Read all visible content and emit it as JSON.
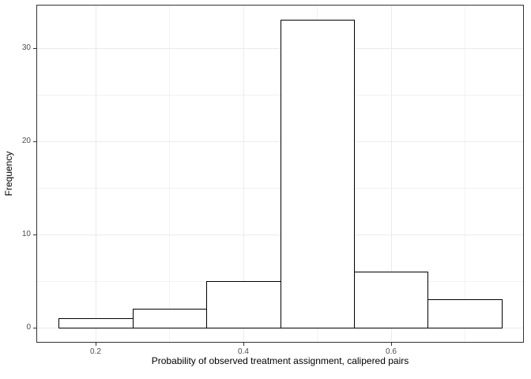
{
  "figure": {
    "background": "#ffffff"
  },
  "chart_data": {
    "type": "bar",
    "subtype": "histogram",
    "title": "",
    "xlabel": "Probability of observed treatment assignment, calipered pairs",
    "ylabel": "Frequency",
    "bin_edges": [
      0.15,
      0.25,
      0.35,
      0.45,
      0.55,
      0.65,
      0.75
    ],
    "counts": [
      1,
      2,
      5,
      33,
      6,
      3
    ],
    "x_ticks": [
      0.2,
      0.4,
      0.6
    ],
    "x_tick_labels": [
      "0.2",
      "0.4",
      "0.6"
    ],
    "y_ticks": [
      0,
      10,
      20,
      30
    ],
    "y_tick_labels": [
      "0",
      "10",
      "20",
      "30"
    ],
    "x_minor_gridlines": [
      0.3,
      0.5,
      0.7
    ],
    "y_minor_gridlines": [
      5,
      15,
      25
    ],
    "xlim": [
      0.12,
      0.78
    ],
    "ylim": [
      -1.65,
      34.65
    ],
    "grid": true,
    "legend": "none",
    "style": {
      "bar_fill": "#ffffff",
      "bar_stroke": "#000000",
      "panel_border": "#333333",
      "grid_major_color": "#ebebeb",
      "grid_minor_color": "#f2f2f2",
      "tick_color": "#333333",
      "tick_label_color": "#4d4d4d",
      "axis_title_color": "#000000",
      "panel_background": "#ffffff"
    }
  }
}
